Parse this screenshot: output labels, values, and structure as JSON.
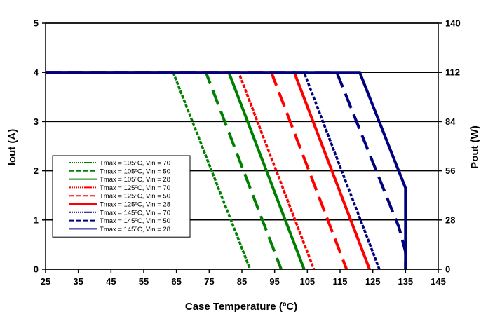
{
  "chart_data": {
    "type": "line",
    "xlabel": "Case Temperature (ºC)",
    "ylabel": "Iout (A)",
    "y2label": "Pout (W)",
    "xlim": [
      25,
      145
    ],
    "ylim": [
      0,
      5
    ],
    "y2lim": [
      0,
      140
    ],
    "xticks": [
      "25",
      "35",
      "45",
      "55",
      "65",
      "75",
      "85",
      "95",
      "105",
      "115",
      "125",
      "135",
      "145"
    ],
    "yticks": [
      "0",
      "1",
      "2",
      "3",
      "4",
      "5"
    ],
    "y2ticks": [
      "0",
      "28",
      "56",
      "84",
      "112",
      "140"
    ],
    "grid": "horizontal",
    "legend_position": "bottom-left",
    "series": [
      {
        "name": "Tmax = 105ºC, Vin = 70",
        "color": "#008000",
        "dash": "dotted",
        "x": [
          25,
          64,
          87.5
        ],
        "y": [
          4,
          4,
          0
        ]
      },
      {
        "name": "Tmax = 105ºC, Vin = 50",
        "color": "#008000",
        "dash": "dashed",
        "x": [
          25,
          74,
          97
        ],
        "y": [
          4,
          4,
          0
        ]
      },
      {
        "name": "Tmax = 105ºC, Vin = 28",
        "color": "#008000",
        "dash": "solid",
        "x": [
          25,
          81,
          104
        ],
        "y": [
          4,
          4,
          0
        ]
      },
      {
        "name": "Tmax = 125ºC, Vin = 70",
        "color": "#ff0000",
        "dash": "dotted",
        "x": [
          25,
          84,
          107
        ],
        "y": [
          4,
          4,
          0
        ]
      },
      {
        "name": "Tmax = 125ºC, Vin = 50",
        "color": "#ff0000",
        "dash": "dashed",
        "x": [
          25,
          94,
          117
        ],
        "y": [
          4,
          4,
          0
        ]
      },
      {
        "name": "Tmax = 125ºC, Vin = 28",
        "color": "#ff0000",
        "dash": "solid",
        "x": [
          25,
          101,
          124
        ],
        "y": [
          4,
          4,
          0
        ]
      },
      {
        "name": "Tmax = 145ºC, Vin = 70",
        "color": "#000080",
        "dash": "dotted",
        "x": [
          25,
          104,
          127
        ],
        "y": [
          4,
          4,
          0
        ]
      },
      {
        "name": "Tmax = 145ºC, Vin = 50",
        "color": "#000080",
        "dash": "dashed",
        "x": [
          25,
          114,
          133,
          135,
          135
        ],
        "y": [
          4,
          4,
          0.85,
          0.35,
          0
        ]
      },
      {
        "name": "Tmax = 145ºC, Vin = 28",
        "color": "#000080",
        "dash": "solid",
        "x": [
          25,
          121,
          135,
          135
        ],
        "y": [
          4,
          4,
          1.65,
          0
        ]
      }
    ]
  }
}
